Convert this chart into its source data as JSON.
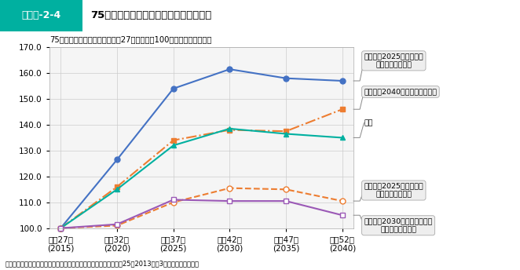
{
  "subtitle": "75歳以上人口の将来推計（平成27年の人口を100としたときの指数）",
  "footer": "国立社会保障・人口問題研究所「日本の地域別将来推計人口（平成25（2013）年3月推計）」より作成",
  "header_label": "図表序-2-4",
  "header_title": "75歳以上人口の将来推計の地域別の特徴",
  "x_labels": [
    "平成27年\n(2015)",
    "平成32年\n(2020)",
    "平成37年\n(2025)",
    "平成42年\n(2030)",
    "平成47年\n(2035)",
    "平成52年\n(2040)"
  ],
  "ylim": [
    100.0,
    170.0
  ],
  "yticks": [
    100.0,
    110.0,
    120.0,
    130.0,
    140.0,
    150.0,
    160.0,
    170.0
  ],
  "series": [
    {
      "name": "埼玉県",
      "values": [
        100.0,
        126.5,
        154.0,
        161.5,
        158.0,
        157.0
      ],
      "color": "#4472C4",
      "linestyle": "solid",
      "marker": "o",
      "markerfacecolor": "#4472C4",
      "markeredgecolor": "#4472C4",
      "linewidth": 1.5,
      "markersize": 5
    },
    {
      "name": "東京都",
      "values": [
        100.0,
        116.0,
        134.0,
        138.0,
        137.5,
        146.0
      ],
      "color": "#ED7D31",
      "linestyle": "dashdot",
      "marker": "s",
      "markerfacecolor": "#ED7D31",
      "markeredgecolor": "#ED7D31",
      "linewidth": 1.5,
      "markersize": 5
    },
    {
      "name": "全国",
      "values": [
        100.0,
        115.0,
        132.0,
        138.5,
        136.5,
        135.0
      ],
      "color": "#00B0A0",
      "linestyle": "solid",
      "marker": "^",
      "markerfacecolor": "#00B0A0",
      "markeredgecolor": "#00B0A0",
      "linewidth": 1.5,
      "markersize": 5
    },
    {
      "name": "山形県",
      "values": [
        100.0,
        101.0,
        110.0,
        115.5,
        115.0,
        110.5
      ],
      "color": "#ED7D31",
      "linestyle": "dashed",
      "marker": "o",
      "markerfacecolor": "white",
      "markeredgecolor": "#ED7D31",
      "linewidth": 1.5,
      "markersize": 5
    },
    {
      "name": "島根県",
      "values": [
        100.0,
        101.5,
        111.0,
        110.5,
        110.5,
        105.0
      ],
      "color": "#9B59B6",
      "linestyle": "solid",
      "marker": "s",
      "markerfacecolor": "white",
      "markeredgecolor": "#9B59B6",
      "linewidth": 1.5,
      "markersize": 5
    }
  ],
  "annotations": [
    {
      "text": "埼玉県（2025年の指数が\n全国で最も高い）",
      "data_val": 157.0,
      "has_box": true
    },
    {
      "text": "東京都（2040年に向けて上昇）",
      "data_val": 146.0,
      "has_box": true
    },
    {
      "text": "全国",
      "data_val": 135.0,
      "has_box": false
    },
    {
      "text": "山形県（2025年の指数が\n全国で最も低い）",
      "data_val": 110.5,
      "has_box": true
    },
    {
      "text": "島根県（2030年以降の指数が\n全国で最も低い）",
      "data_val": 105.0,
      "has_box": true
    }
  ],
  "header_bg": "#00B0A0",
  "plot_bg": "#F5F5F5",
  "fig_bg": "#FFFFFF",
  "ann_bg": "#EEEEEE"
}
